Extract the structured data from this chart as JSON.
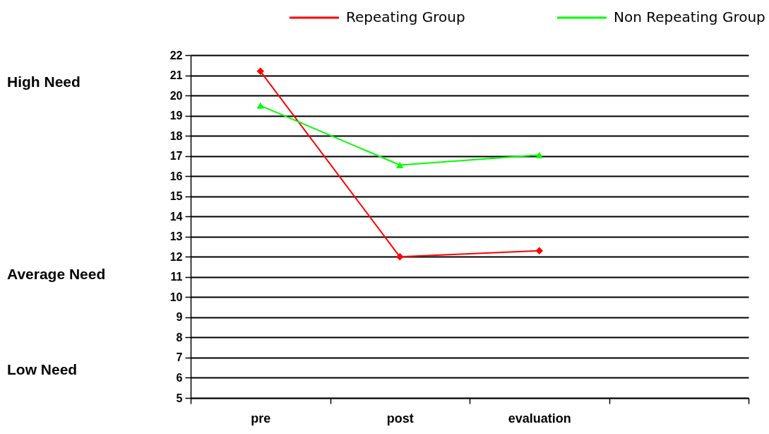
{
  "chart_data": {
    "type": "line",
    "categories": [
      "pre",
      "post",
      "evaluation",
      null
    ],
    "series": [
      {
        "name": "Repeating Group",
        "color": "#ff0000",
        "marker": "diamond",
        "values": [
          21.2,
          12.0,
          12.3,
          null
        ]
      },
      {
        "name": "Non Repeating Group",
        "color": "#00ff00",
        "marker": "triangle",
        "values": [
          19.5,
          16.55,
          17.05,
          null
        ]
      }
    ],
    "ylim": [
      5,
      22
    ],
    "yticks": [
      5,
      6,
      7,
      8,
      9,
      10,
      11,
      12,
      13,
      14,
      15,
      16,
      17,
      18,
      19,
      20,
      21,
      22
    ],
    "annotations": [
      "High Need",
      "Average Need",
      "Low Need"
    ],
    "grid": "y",
    "legend": "top right"
  }
}
